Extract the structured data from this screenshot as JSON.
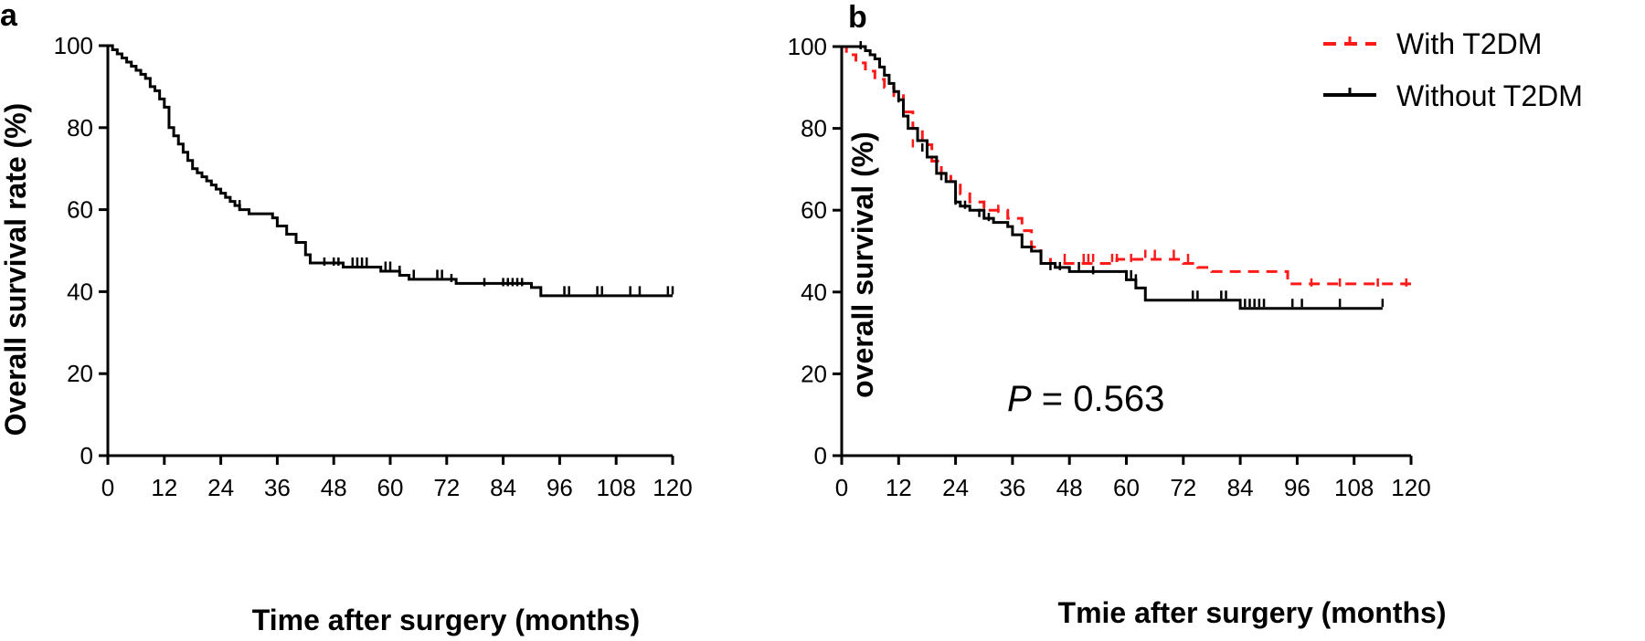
{
  "chart_data": [
    {
      "panel": "a",
      "type": "line",
      "ylabel": "Overall survival rate (%)",
      "xlabel": "Time after surgery (months)",
      "xlim": [
        0,
        120
      ],
      "ylim": [
        0,
        100
      ],
      "xticks": [
        0,
        12,
        24,
        36,
        48,
        60,
        72,
        84,
        96,
        108,
        120
      ],
      "yticks": [
        0,
        20,
        40,
        60,
        80,
        100
      ],
      "series": [
        {
          "color": "#000000",
          "dash": false,
          "step": [
            [
              0,
              100
            ],
            [
              1,
              99
            ],
            [
              2,
              98
            ],
            [
              3,
              97
            ],
            [
              4,
              96
            ],
            [
              5,
              95
            ],
            [
              6,
              94
            ],
            [
              7,
              93
            ],
            [
              8,
              92
            ],
            [
              9,
              90
            ],
            [
              10,
              89
            ],
            [
              11,
              87
            ],
            [
              12,
              85
            ],
            [
              13,
              80
            ],
            [
              14,
              78
            ],
            [
              15,
              76
            ],
            [
              16,
              74
            ],
            [
              17,
              72
            ],
            [
              18,
              70
            ],
            [
              19,
              69
            ],
            [
              20,
              68
            ],
            [
              21,
              67
            ],
            [
              22,
              66
            ],
            [
              23,
              65
            ],
            [
              24,
              64
            ],
            [
              25,
              63
            ],
            [
              26,
              62
            ],
            [
              27,
              61
            ],
            [
              28,
              60
            ],
            [
              30,
              59
            ],
            [
              35,
              58
            ],
            [
              36,
              56
            ],
            [
              38,
              54
            ],
            [
              40,
              52
            ],
            [
              42,
              49
            ],
            [
              43,
              47
            ],
            [
              50,
              46
            ],
            [
              58,
              45
            ],
            [
              60,
              45
            ],
            [
              62,
              44
            ],
            [
              64,
              43
            ],
            [
              72,
              43
            ],
            [
              74,
              42
            ],
            [
              90,
              41
            ],
            [
              92,
              39
            ],
            [
              120,
              39
            ]
          ],
          "censors": [
            [
              28,
              61
            ],
            [
              46,
              47
            ],
            [
              48,
              47
            ],
            [
              49,
              47
            ],
            [
              52,
              47
            ],
            [
              53,
              47
            ],
            [
              54,
              47
            ],
            [
              55,
              47
            ],
            [
              59,
              46
            ],
            [
              60,
              46
            ],
            [
              62,
              45
            ],
            [
              65,
              44
            ],
            [
              70,
              44
            ],
            [
              71,
              44
            ],
            [
              73,
              43
            ],
            [
              80,
              42
            ],
            [
              84,
              42
            ],
            [
              85,
              42
            ],
            [
              86,
              42
            ],
            [
              87,
              42
            ],
            [
              88,
              42
            ],
            [
              97,
              40
            ],
            [
              98,
              40
            ],
            [
              104,
              40
            ],
            [
              105,
              40
            ],
            [
              111,
              40
            ],
            [
              113,
              40
            ],
            [
              119,
              40
            ],
            [
              120,
              40
            ]
          ]
        }
      ]
    },
    {
      "panel": "b",
      "type": "line",
      "ylabel": "overall survival (%)",
      "xlabel": "Tmie after surgery (months)",
      "xlim": [
        0,
        120
      ],
      "ylim": [
        0,
        100
      ],
      "xticks": [
        0,
        12,
        24,
        36,
        48,
        60,
        72,
        84,
        96,
        108,
        120
      ],
      "yticks": [
        0,
        20,
        40,
        60,
        80,
        100
      ],
      "annotation": {
        "italic": "P",
        "rest": " = 0.563"
      },
      "legend_position": "top-right",
      "series": [
        {
          "name": "With T2DM",
          "color": "#ff1a1a",
          "dash": true,
          "step": [
            [
              0,
              100
            ],
            [
              1,
              98
            ],
            [
              3,
              96
            ],
            [
              5,
              94
            ],
            [
              7,
              92
            ],
            [
              9,
              90
            ],
            [
              11,
              88
            ],
            [
              13,
              84
            ],
            [
              15,
              80
            ],
            [
              17,
              76
            ],
            [
              19,
              72
            ],
            [
              21,
              69
            ],
            [
              23,
              67
            ],
            [
              25,
              64
            ],
            [
              27,
              62
            ],
            [
              30,
              60
            ],
            [
              35,
              58
            ],
            [
              38,
              55
            ],
            [
              40,
              51
            ],
            [
              42,
              48
            ],
            [
              44,
              47
            ],
            [
              58,
              48
            ],
            [
              64,
              48
            ],
            [
              72,
              47
            ],
            [
              75,
              46
            ],
            [
              78,
              45
            ],
            [
              92,
              45
            ],
            [
              94,
              42
            ],
            [
              120,
              42
            ]
          ],
          "censors": [
            [
              15,
              76
            ],
            [
              30,
              61
            ],
            [
              33,
              60
            ],
            [
              47,
              48
            ],
            [
              51,
              48
            ],
            [
              52,
              48
            ],
            [
              53,
              48
            ],
            [
              57,
              48
            ],
            [
              58,
              48
            ],
            [
              61,
              48
            ],
            [
              64,
              49
            ],
            [
              66,
              49
            ],
            [
              70,
              49
            ],
            [
              73,
              48
            ],
            [
              99,
              42
            ],
            [
              105,
              42
            ],
            [
              113,
              42
            ],
            [
              119,
              42
            ]
          ]
        },
        {
          "name": "Without T2DM",
          "color": "#000000",
          "dash": false,
          "step": [
            [
              0,
              100
            ],
            [
              4,
              100
            ],
            [
              5,
              99
            ],
            [
              6,
              98
            ],
            [
              7,
              97
            ],
            [
              8,
              95
            ],
            [
              9,
              93
            ],
            [
              10,
              91
            ],
            [
              11,
              89
            ],
            [
              12,
              87
            ],
            [
              13,
              83
            ],
            [
              14,
              80
            ],
            [
              16,
              77
            ],
            [
              18,
              73
            ],
            [
              20,
              69
            ],
            [
              22,
              67
            ],
            [
              24,
              62
            ],
            [
              25,
              61
            ],
            [
              27,
              60
            ],
            [
              30,
              58
            ],
            [
              32,
              57
            ],
            [
              35,
              56
            ],
            [
              36,
              54
            ],
            [
              38,
              51
            ],
            [
              40,
              50
            ],
            [
              42,
              47
            ],
            [
              45,
              46
            ],
            [
              48,
              45
            ],
            [
              58,
              45
            ],
            [
              60,
              43
            ],
            [
              62,
              41
            ],
            [
              64,
              38
            ],
            [
              82,
              38
            ],
            [
              84,
              36
            ],
            [
              114,
              36
            ]
          ],
          "censors": [
            [
              4,
              100
            ],
            [
              12,
              87
            ],
            [
              17,
              75
            ],
            [
              21,
              68
            ],
            [
              24,
              62
            ],
            [
              26,
              61
            ],
            [
              29,
              59
            ],
            [
              31,
              58
            ],
            [
              44,
              46
            ],
            [
              46,
              46
            ],
            [
              50,
              46
            ],
            [
              53,
              45
            ],
            [
              60,
              44
            ],
            [
              61,
              44
            ],
            [
              62,
              43
            ],
            [
              74,
              39
            ],
            [
              75,
              39
            ],
            [
              80,
              39
            ],
            [
              81,
              39
            ],
            [
              85,
              37
            ],
            [
              86,
              37
            ],
            [
              87,
              37
            ],
            [
              88,
              37
            ],
            [
              89,
              37
            ],
            [
              95,
              37
            ],
            [
              97,
              37
            ],
            [
              105,
              37
            ],
            [
              114,
              37
            ]
          ]
        }
      ]
    }
  ]
}
